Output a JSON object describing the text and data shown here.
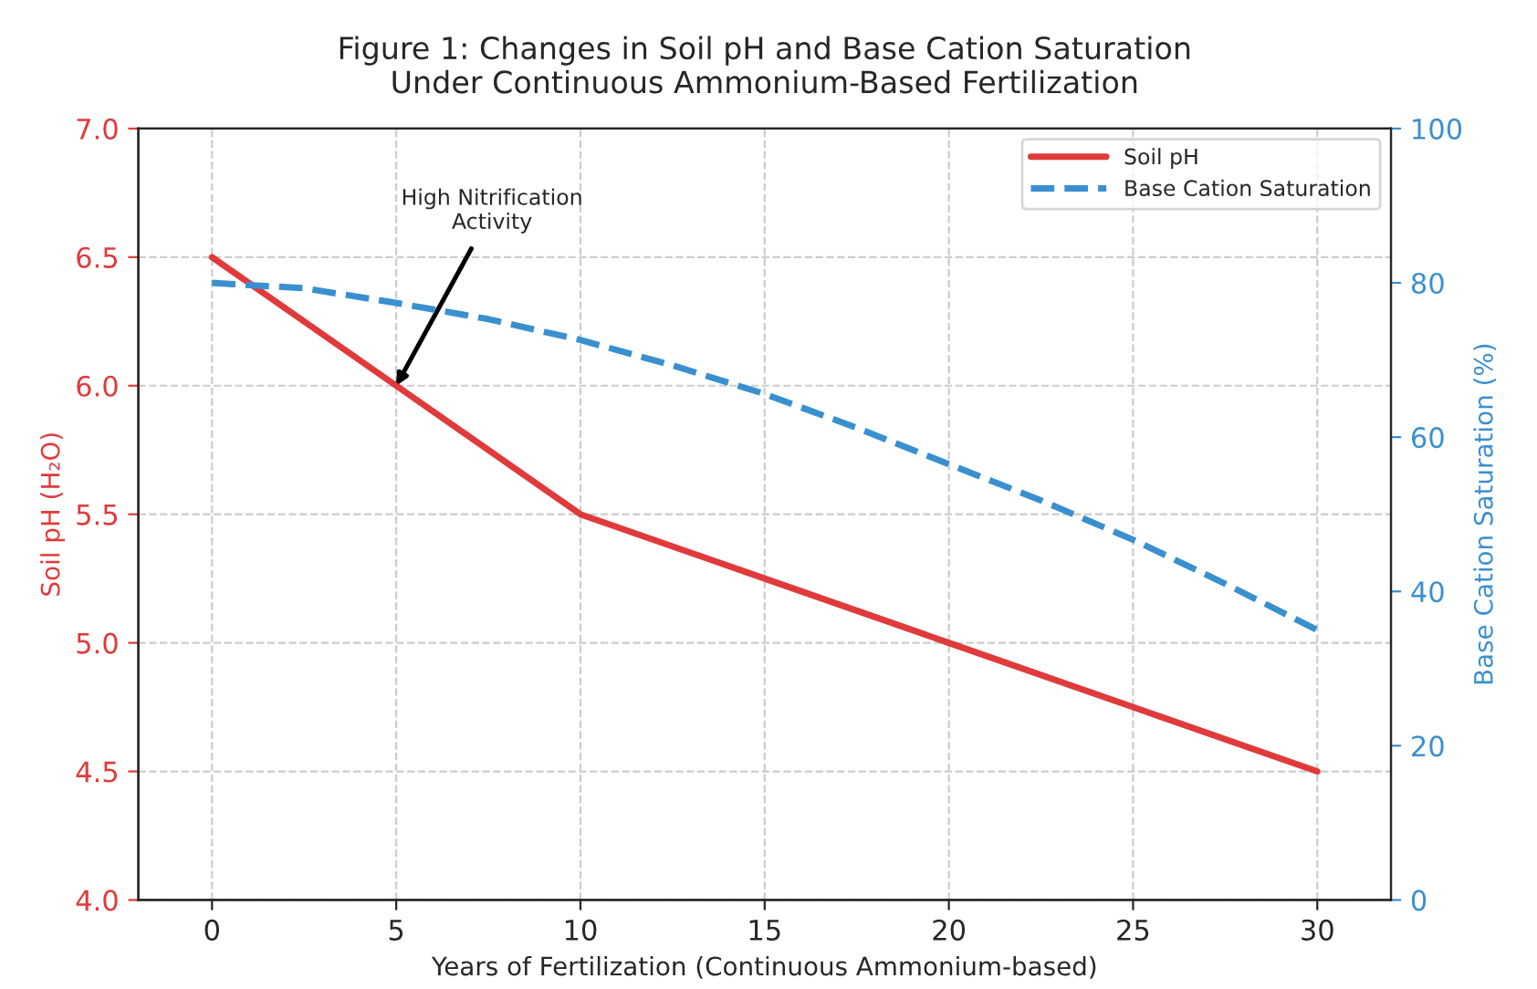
{
  "chart_data": {
    "type": "line",
    "title": "Figure 1: Changes in Soil pH and Base Cation Saturation\nUnder Continuous Ammonium-Based Fertilization",
    "xlabel": "Years of Fertilization (Continuous Ammonium-based)",
    "ylabel": "Soil pH (H₂O)",
    "y2label": "Base Cation Saturation (%)",
    "series": [
      {
        "name": "Soil pH",
        "color": "#e03a3a",
        "line_style": "solid",
        "x": [
          0,
          5,
          10,
          15,
          20,
          25,
          30
        ],
        "values": [
          6.5,
          6.0,
          5.5,
          5.25,
          5.0,
          4.75,
          4.5
        ]
      },
      {
        "name": "Base Cation Saturation",
        "color": "#3a8fcf",
        "line_style": "dashed",
        "axis": "y2",
        "x": [
          0,
          2.5,
          5,
          7.5,
          10,
          12.5,
          15,
          17.5,
          20,
          22.5,
          25,
          27.5,
          30
        ],
        "values": [
          80,
          79.3,
          77.4,
          75.3,
          72.6,
          69.3,
          65.6,
          61.2,
          56.5,
          51.8,
          46.7,
          41,
          35
        ]
      }
    ],
    "xlim": [
      -2,
      32
    ],
    "xticks": [
      0,
      5,
      10,
      15,
      20,
      25,
      30
    ],
    "ylim": [
      4.0,
      7.0
    ],
    "yticks": [
      {
        "value": 4.0,
        "label": "4.0"
      },
      {
        "value": 4.5,
        "label": "4.5"
      },
      {
        "value": 5.0,
        "label": "5.0"
      },
      {
        "value": 5.5,
        "label": "5.5"
      },
      {
        "value": 6.0,
        "label": "6.0"
      },
      {
        "value": 6.5,
        "label": "6.5"
      },
      {
        "value": 7.0,
        "label": "7.0"
      }
    ],
    "y2lim": [
      0,
      100
    ],
    "y2ticks": [
      0,
      20,
      40,
      60,
      80,
      100
    ],
    "annotations": [
      {
        "text": "High Nitrification\nActivity",
        "x": 5,
        "y": 6.0
      }
    ],
    "grid": true,
    "legend": "top right"
  }
}
